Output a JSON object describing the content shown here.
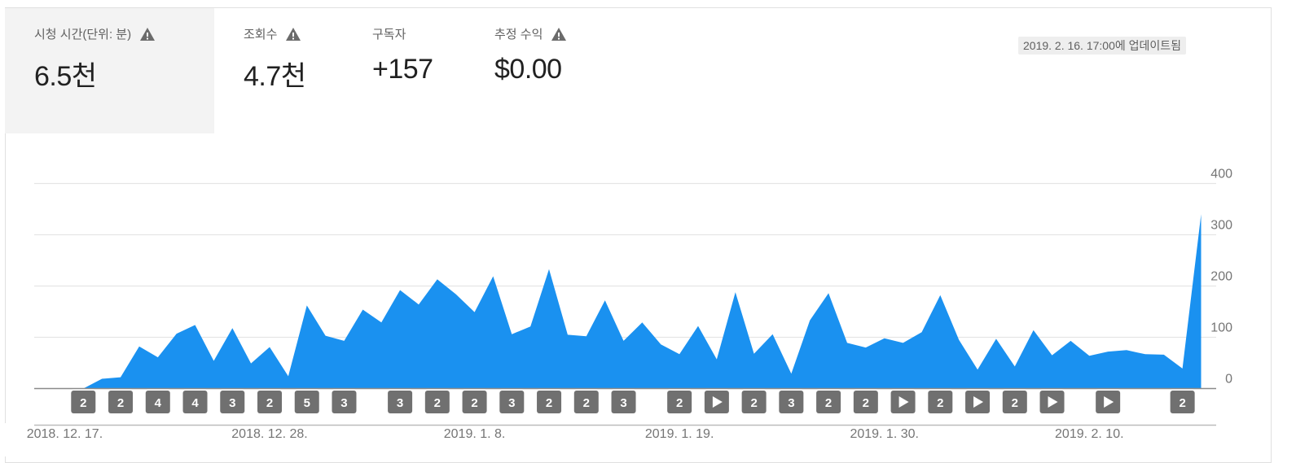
{
  "metrics": [
    {
      "label": "시청 시간(단위: 분)",
      "value": "6.5천",
      "warning": true,
      "selected": true
    },
    {
      "label": "조회수",
      "value": "4.7천",
      "warning": true,
      "selected": false
    },
    {
      "label": "구독자",
      "value": "+157",
      "warning": false,
      "selected": false
    },
    {
      "label": "추정 수익",
      "value": "$0.00",
      "warning": true,
      "selected": false
    }
  ],
  "updated_label": "2019. 2. 16. 17:00에 업데이트됨",
  "icons": {
    "warning": "warning-triangle-icon",
    "play": "play-icon"
  },
  "colors": {
    "area": "#1a91f0",
    "marker": "#707070",
    "selected_tab": "#f3f3f3"
  },
  "chart_data": {
    "type": "area",
    "x_start": "2018-12-17",
    "x_end": "2019-02-16",
    "values": [
      0,
      0,
      19,
      22,
      82,
      61,
      107,
      124,
      54,
      118,
      49,
      81,
      24,
      162,
      103,
      93,
      154,
      129,
      192,
      164,
      213,
      184,
      149,
      219,
      106,
      121,
      233,
      105,
      102,
      172,
      93,
      129,
      86,
      67,
      122,
      57,
      188,
      68,
      106,
      29,
      133,
      186,
      89,
      80,
      98,
      89,
      110,
      182,
      95,
      37,
      97,
      43,
      114,
      65,
      93,
      64,
      72,
      75,
      67,
      66,
      39,
      340
    ],
    "ylim": [
      0,
      400
    ],
    "yticks": [
      "0",
      "100",
      "200",
      "300",
      "400"
    ],
    "xticks": [
      {
        "date": "2018-12-17",
        "label": "2018. 12. 17."
      },
      {
        "date": "2018-12-28",
        "label": "2018. 12. 28."
      },
      {
        "date": "2019-01-08",
        "label": "2019. 1. 8."
      },
      {
        "date": "2019-01-19",
        "label": "2019. 1. 19."
      },
      {
        "date": "2019-01-30",
        "label": "2019. 1. 30."
      },
      {
        "date": "2019-02-10",
        "label": "2019. 2. 10."
      }
    ],
    "grid": true,
    "markers": [
      {
        "date": "2018-12-18",
        "label": "2"
      },
      {
        "date": "2018-12-20",
        "label": "2"
      },
      {
        "date": "2018-12-22",
        "label": "4"
      },
      {
        "date": "2018-12-24",
        "label": "4"
      },
      {
        "date": "2018-12-26",
        "label": "3"
      },
      {
        "date": "2018-12-28",
        "label": "2"
      },
      {
        "date": "2018-12-30",
        "label": "5"
      },
      {
        "date": "2019-01-01",
        "label": "3"
      },
      {
        "date": "2019-01-04",
        "label": "3"
      },
      {
        "date": "2019-01-06",
        "label": "2"
      },
      {
        "date": "2019-01-08",
        "label": "2"
      },
      {
        "date": "2019-01-10",
        "label": "3"
      },
      {
        "date": "2019-01-12",
        "label": "2"
      },
      {
        "date": "2019-01-14",
        "label": "2"
      },
      {
        "date": "2019-01-16",
        "label": "3"
      },
      {
        "date": "2019-01-19",
        "label": "2"
      },
      {
        "date": "2019-01-21",
        "label": "play"
      },
      {
        "date": "2019-01-23",
        "label": "2"
      },
      {
        "date": "2019-01-25",
        "label": "3"
      },
      {
        "date": "2019-01-27",
        "label": "2"
      },
      {
        "date": "2019-01-29",
        "label": "2"
      },
      {
        "date": "2019-01-31",
        "label": "play"
      },
      {
        "date": "2019-02-02",
        "label": "2"
      },
      {
        "date": "2019-02-04",
        "label": "play"
      },
      {
        "date": "2019-02-06",
        "label": "2"
      },
      {
        "date": "2019-02-08",
        "label": "play"
      },
      {
        "date": "2019-02-11",
        "label": "play"
      },
      {
        "date": "2019-02-15",
        "label": "2"
      }
    ]
  }
}
